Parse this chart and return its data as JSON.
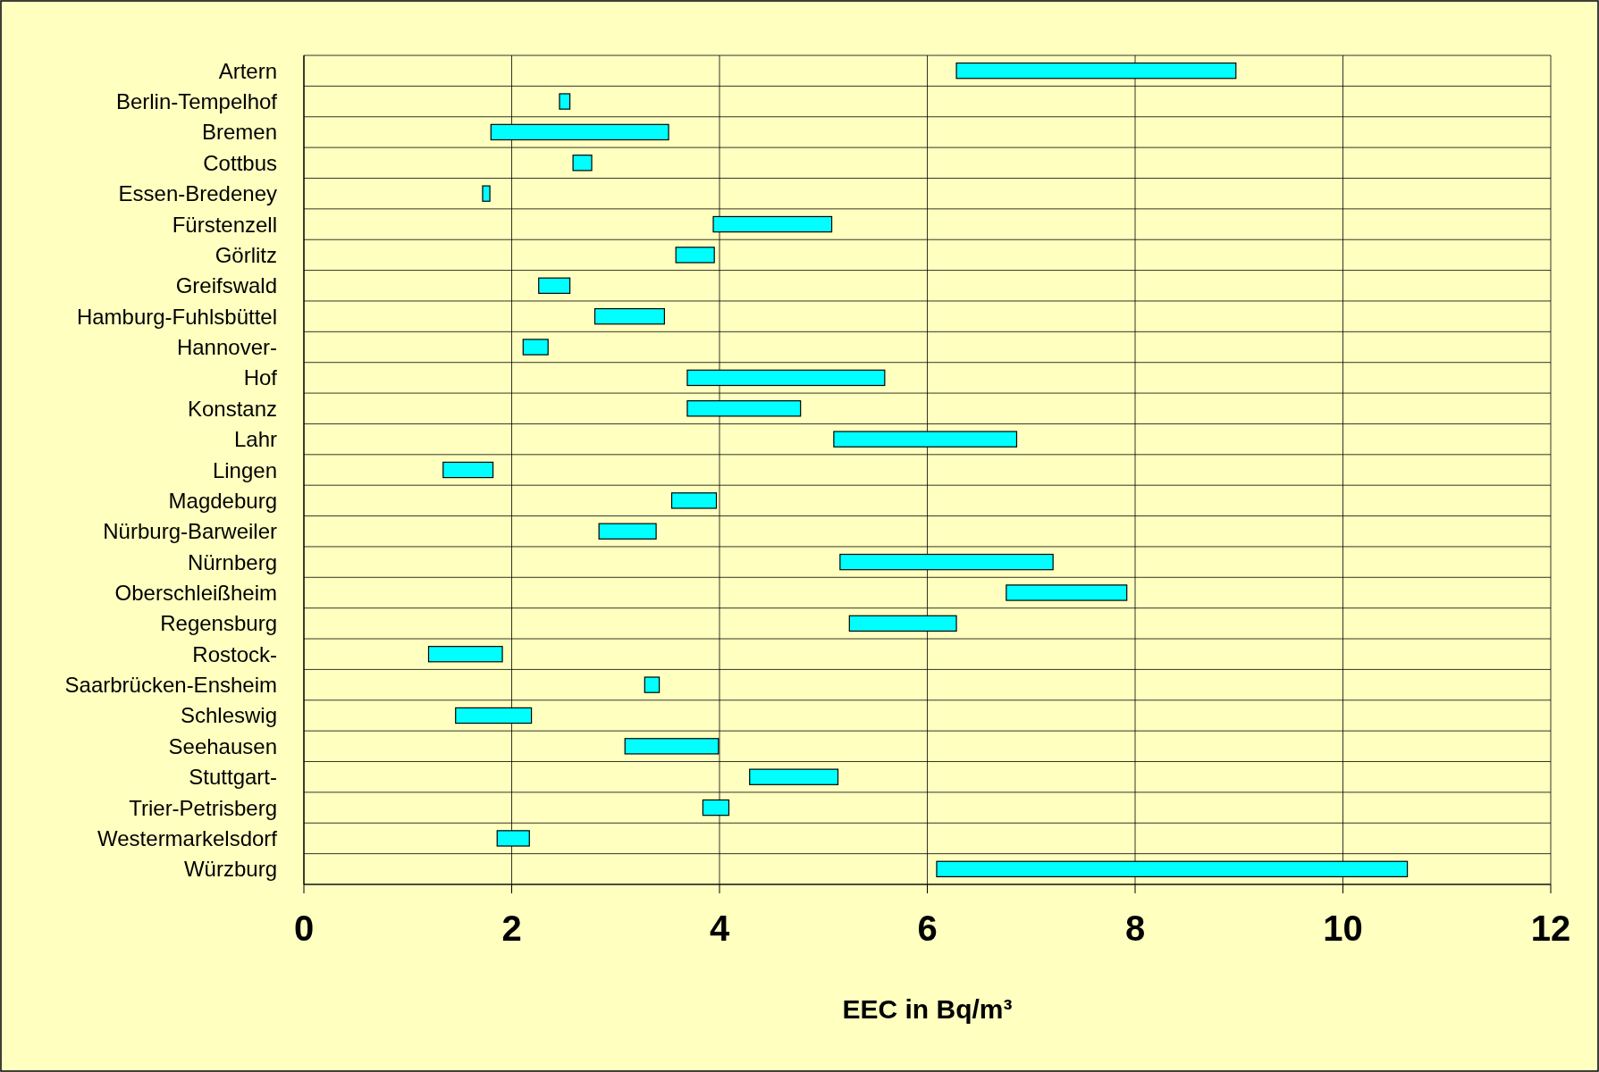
{
  "chart_data": {
    "type": "bar",
    "orientation": "horizontal",
    "xlabel": "EEC in Bq/m³",
    "categories": [
      "Artern",
      "Berlin-Tempelhof",
      "Bremen",
      "Cottbus",
      "Essen-Bredeney",
      "Fürstenzell",
      "Görlitz",
      "Greifswald",
      "Hamburg-Fuhlsbüttel",
      "Hannover-",
      "Hof",
      "Konstanz",
      "Lahr",
      "Lingen",
      "Magdeburg",
      "Nürburg-Barweiler",
      "Nürnberg",
      "Oberschleißheim",
      "Regensburg",
      "Rostock-",
      "Saarbrücken-Ensheim",
      "Schleswig",
      "Seehausen",
      "Stuttgart-",
      "Trier-Petrisberg",
      "Westermarkelsdorf",
      "Würzburg"
    ],
    "base": [
      6.28,
      2.46,
      1.8,
      2.59,
      1.72,
      3.94,
      3.58,
      2.26,
      2.8,
      2.11,
      3.69,
      3.69,
      5.1,
      1.34,
      3.54,
      2.84,
      5.16,
      6.76,
      5.25,
      1.2,
      3.28,
      1.46,
      3.09,
      4.29,
      3.84,
      1.86,
      6.09
    ],
    "values": [
      2.69,
      0.1,
      1.71,
      0.18,
      0.07,
      1.14,
      0.37,
      0.3,
      0.67,
      0.24,
      1.9,
      1.09,
      1.76,
      0.48,
      0.43,
      0.55,
      2.05,
      1.16,
      1.03,
      0.71,
      0.14,
      0.73,
      0.9,
      0.85,
      0.25,
      0.31,
      4.53
    ],
    "color": "#00ffff",
    "xlim": [
      0,
      12
    ],
    "xticks": [
      0,
      2,
      4,
      6,
      8,
      10,
      12
    ],
    "grid": true
  }
}
